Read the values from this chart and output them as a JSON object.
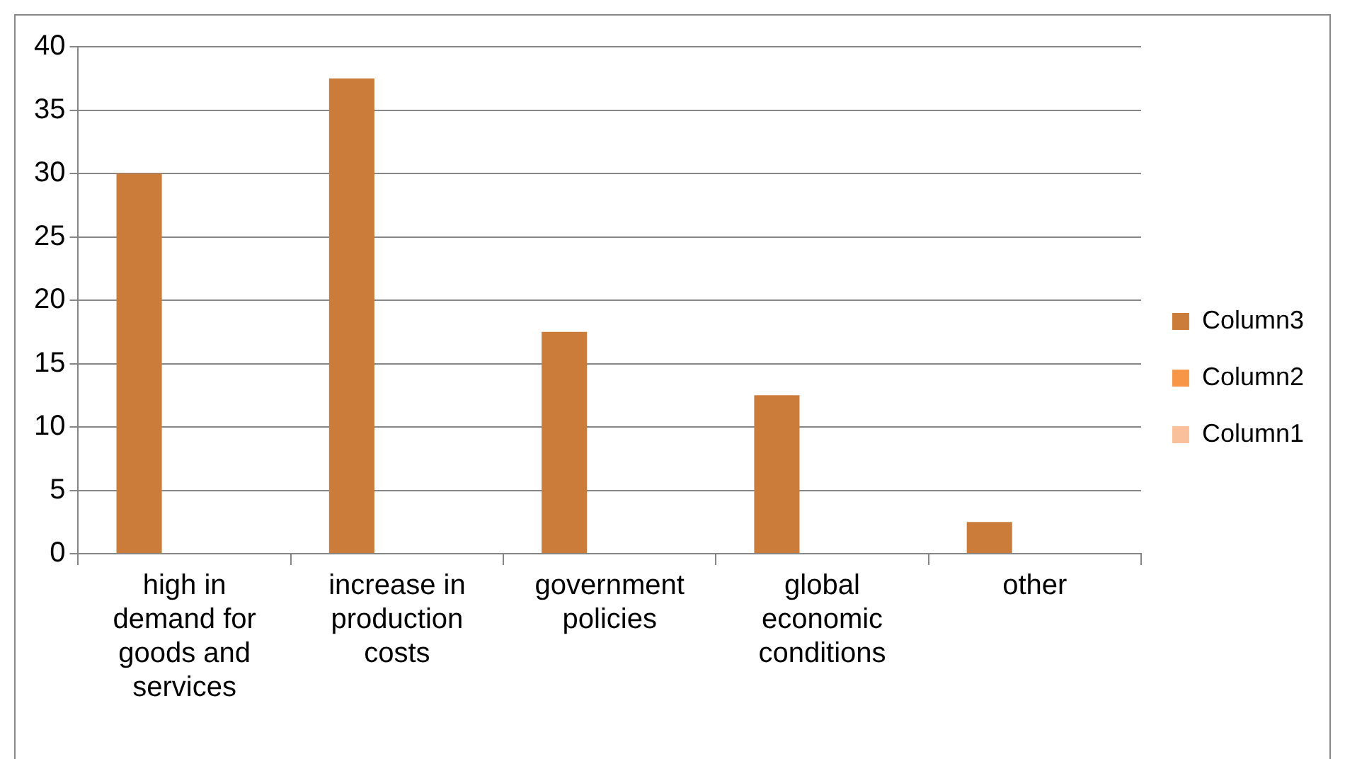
{
  "chart_data": {
    "type": "bar",
    "categories": [
      "high in demand for goods and services",
      "increase in production costs",
      "government policies",
      "global economic conditions",
      "other"
    ],
    "series": [
      {
        "name": "Column3",
        "color": "#cc7c3a",
        "values": [
          30,
          37.5,
          17.5,
          12.5,
          2.5
        ]
      },
      {
        "name": "Column2",
        "color": "#f79646",
        "values": [
          null,
          null,
          null,
          null,
          null
        ]
      },
      {
        "name": "Column1",
        "color": "#fac09c",
        "values": [
          null,
          null,
          null,
          null,
          null
        ]
      }
    ],
    "ylim": [
      0,
      40
    ],
    "yticks": [
      0,
      5,
      10,
      15,
      20,
      25,
      30,
      35,
      40
    ],
    "grid": "y",
    "legend": "right"
  }
}
